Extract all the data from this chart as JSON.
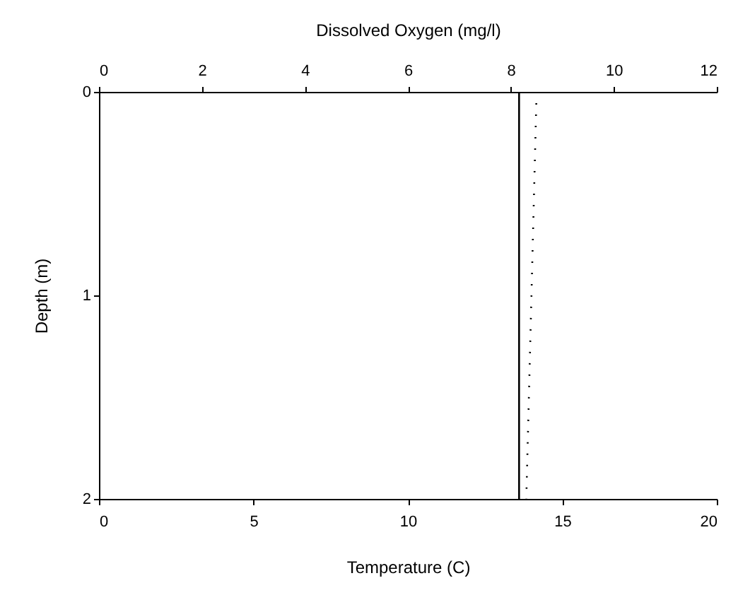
{
  "chart_data": {
    "type": "line",
    "xlabel": "Temperature (C)",
    "x2label": "Dissolved Oxygen (mg/l)",
    "ylabel": "Depth (m)",
    "xlim": [
      0,
      20
    ],
    "xticks": [
      0,
      5,
      10,
      15,
      20
    ],
    "x2lim": [
      0,
      12
    ],
    "x2ticks": [
      0,
      2,
      4,
      6,
      8,
      10,
      12
    ],
    "ylim": [
      2,
      0
    ],
    "yticks": [
      0,
      1,
      2
    ],
    "grid": false,
    "marker": "none",
    "series": [
      {
        "color": "#000000",
        "line_style": "solid",
        "x": [
          13.6,
          13.6
        ],
        "values": [
          0,
          2
        ]
      },
      {
        "color": "#000000",
        "line_style": "dotted",
        "axis": "x2",
        "x": [
          8.5,
          8.4,
          8.3
        ],
        "values": [
          0,
          1,
          2
        ]
      }
    ]
  }
}
